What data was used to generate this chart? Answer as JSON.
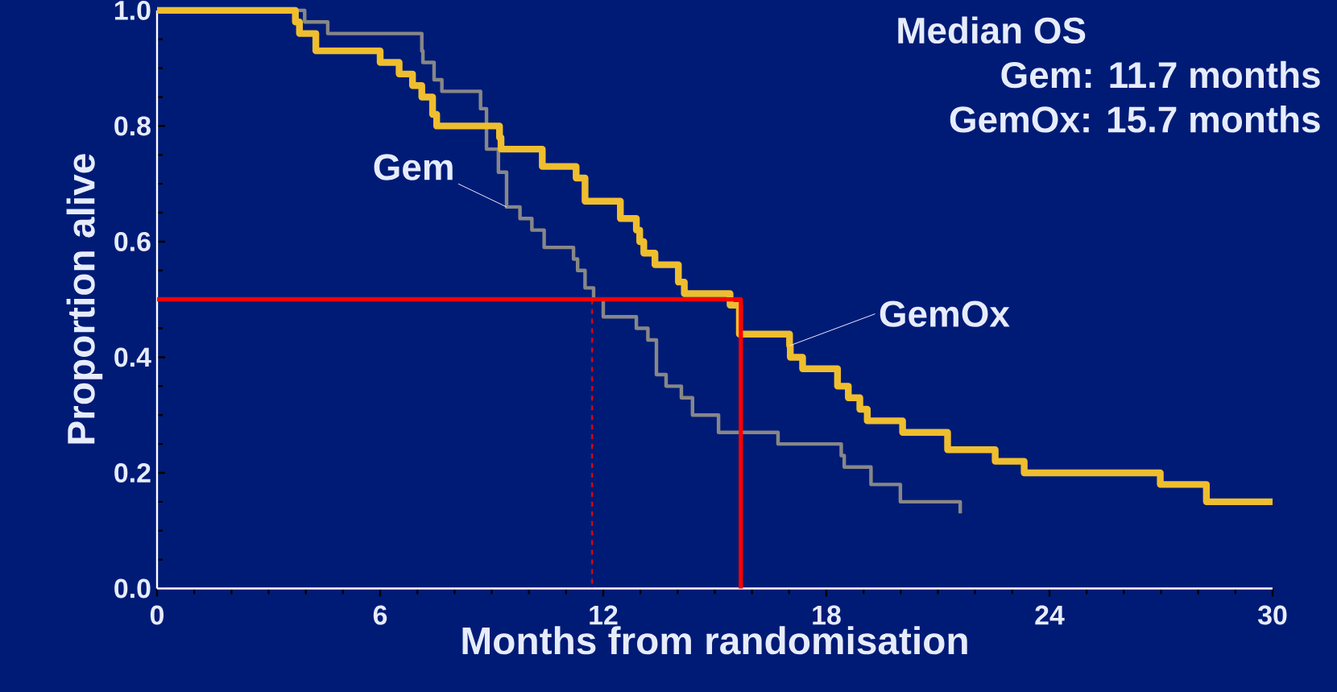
{
  "chart_data": {
    "type": "step",
    "xlabel": "Months from randomisation",
    "ylabel": "Proportion alive",
    "xlim": [
      0,
      30
    ],
    "xticks": [
      0,
      6,
      12,
      18,
      24,
      30
    ],
    "ylim": [
      0,
      1
    ],
    "yticks": [
      {
        "value": 0,
        "label": "0.0"
      },
      {
        "value": 0.2,
        "label": "0.2"
      },
      {
        "value": 0.4,
        "label": "0.4"
      },
      {
        "value": 0.6,
        "label": "0.6"
      },
      {
        "value": 0.8,
        "label": "0.8"
      },
      {
        "value": 1,
        "label": "1.0"
      }
    ],
    "marker": "none",
    "series": [
      {
        "name": "Gem",
        "color": "#878787",
        "x": [
          0,
          3.97,
          4.59,
          7.12,
          7.15,
          7.45,
          7.66,
          8.7,
          8.86,
          9.18,
          9.4,
          9.76,
          10.08,
          10.41,
          11.2,
          11.31,
          11.51,
          11.74,
          12.0,
          12.89,
          13.2,
          13.43,
          13.69,
          14.1,
          14.4,
          15.1,
          16.7,
          18.4,
          18.48,
          19.2,
          19.99,
          21.6,
          21.6
        ],
        "values": [
          1.0,
          0.98,
          0.96,
          0.93,
          0.91,
          0.88,
          0.86,
          0.83,
          0.76,
          0.72,
          0.66,
          0.64,
          0.62,
          0.59,
          0.57,
          0.55,
          0.52,
          0.5,
          0.47,
          0.45,
          0.43,
          0.37,
          0.35,
          0.33,
          0.3,
          0.27,
          0.25,
          0.23,
          0.21,
          0.18,
          0.15,
          0.15,
          0.13
        ]
      },
      {
        "name": "GemOx",
        "color": "#efbe2f",
        "x": [
          0,
          3.72,
          3.83,
          4.27,
          6.0,
          6.51,
          6.87,
          7.12,
          7.41,
          7.52,
          9.21,
          9.25,
          10.36,
          11.27,
          11.51,
          12.46,
          12.89,
          12.98,
          13.09,
          13.39,
          14.02,
          14.18,
          15.41,
          15.66,
          17.01,
          17.03,
          17.36,
          18.3,
          18.59,
          18.9,
          19.1,
          20.05,
          21.26,
          22.54,
          23.32,
          26.98,
          28.22,
          30
        ],
        "values": [
          1.0,
          0.98,
          0.96,
          0.93,
          0.91,
          0.89,
          0.87,
          0.85,
          0.82,
          0.8,
          0.78,
          0.76,
          0.73,
          0.71,
          0.67,
          0.64,
          0.62,
          0.6,
          0.58,
          0.56,
          0.53,
          0.51,
          0.49,
          0.44,
          0.42,
          0.4,
          0.38,
          0.35,
          0.33,
          0.31,
          0.29,
          0.27,
          0.24,
          0.22,
          0.2,
          0.18,
          0.15,
          0.15
        ]
      },
      {
        "type": "line",
        "color": "#ff0000",
        "line_style": "solid",
        "x": [
          0,
          15.7,
          15.7
        ],
        "values": [
          0.5,
          0.5,
          0
        ]
      },
      {
        "type": "line",
        "color": "#ff0000",
        "line_style": "dashed",
        "x": [
          11.7,
          11.7
        ],
        "values": [
          0.5,
          0
        ]
      }
    ],
    "annotations": [
      "Median OS",
      "Gem: 11.7 months",
      "GemOx: 15.7 months"
    ]
  }
}
